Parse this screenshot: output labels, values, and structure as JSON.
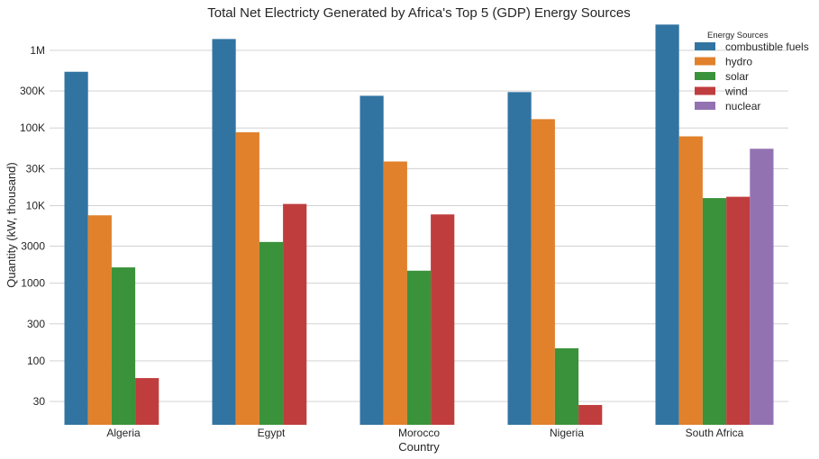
{
  "chart_data": {
    "type": "bar",
    "title": "Total Net Electricty Generated by Africa's Top 5 (GDP) Energy Sources",
    "xlabel": "Country",
    "ylabel": "Quantity (kW, thousand)",
    "yscale": "log",
    "ylim": [
      15,
      2000000
    ],
    "y_ticks": [
      30,
      100,
      300,
      1000,
      3000,
      10000,
      30000,
      100000,
      300000,
      1000000
    ],
    "y_tick_labels": [
      "30",
      "100",
      "300",
      "1000",
      "3000",
      "10K",
      "30K",
      "100K",
      "300K",
      "1M"
    ],
    "grid": "horizontal",
    "categories": [
      "Algeria",
      "Egypt",
      "Morocco",
      "Nigeria",
      "South Africa"
    ],
    "legend": {
      "title": "Energy Sources",
      "position": "top-right"
    },
    "series": [
      {
        "name": "combustible fuels",
        "color": "#3274a1",
        "values": [
          530000,
          1400000,
          260000,
          290000,
          2150000
        ]
      },
      {
        "name": "hydro",
        "color": "#e1812c",
        "values": [
          7500,
          88000,
          37000,
          130000,
          78000
        ]
      },
      {
        "name": "solar",
        "color": "#3a923a",
        "values": [
          1600,
          3400,
          1450,
          145,
          12500
        ]
      },
      {
        "name": "wind",
        "color": "#c03d3e",
        "values": [
          60,
          10500,
          7700,
          27,
          13000
        ]
      },
      {
        "name": "nuclear",
        "color": "#9372b2",
        "values": [
          null,
          null,
          null,
          null,
          54000
        ]
      }
    ]
  }
}
